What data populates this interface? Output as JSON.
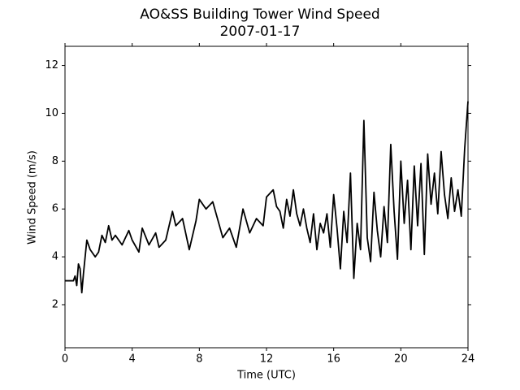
{
  "chart_data": {
    "type": "line",
    "title": "AO&SS Building Tower Wind Speed",
    "subtitle": "2007-01-17",
    "x_label": "Time (UTC)",
    "y_label": "Wind Speed (m/s)",
    "color": "#000000",
    "x": [
      0,
      0.3,
      0.5,
      0.6,
      0.7,
      0.8,
      0.9,
      1.0,
      1.1,
      1.3,
      1.5,
      1.8,
      2.0,
      2.2,
      2.4,
      2.6,
      2.8,
      3.0,
      3.4,
      3.8,
      4.0,
      4.4,
      4.6,
      5.0,
      5.4,
      5.6,
      6.0,
      6.4,
      6.6,
      7.0,
      7.4,
      7.8,
      8.0,
      8.4,
      8.8,
      9.0,
      9.4,
      9.8,
      10.2,
      10.6,
      11.0,
      11.4,
      11.8,
      12.0,
      12.4,
      12.6,
      12.8,
      13.0,
      13.2,
      13.4,
      13.6,
      13.8,
      14.0,
      14.2,
      14.4,
      14.6,
      14.8,
      15.0,
      15.2,
      15.4,
      15.6,
      15.8,
      16.0,
      16.2,
      16.4,
      16.6,
      16.8,
      17.0,
      17.2,
      17.4,
      17.6,
      17.8,
      18.0,
      18.2,
      18.4,
      18.6,
      18.8,
      19.0,
      19.2,
      19.4,
      19.6,
      19.8,
      20.0,
      20.2,
      20.4,
      20.6,
      20.8,
      21.0,
      21.2,
      21.4,
      21.6,
      21.8,
      22.0,
      22.2,
      22.4,
      22.6,
      22.8,
      23.0,
      23.2,
      23.4,
      23.6,
      23.8,
      24.0
    ],
    "values": [
      3.0,
      3.0,
      3.0,
      3.2,
      2.8,
      3.7,
      3.5,
      2.5,
      3.3,
      4.7,
      4.3,
      4.0,
      4.2,
      4.9,
      4.6,
      5.3,
      4.7,
      4.9,
      4.5,
      5.1,
      4.7,
      4.2,
      5.2,
      4.5,
      5.0,
      4.4,
      4.7,
      5.9,
      5.3,
      5.6,
      4.3,
      5.5,
      6.4,
      6.0,
      6.3,
      5.8,
      4.8,
      5.2,
      4.4,
      6.0,
      5.0,
      5.6,
      5.3,
      6.5,
      6.8,
      6.1,
      5.9,
      5.2,
      6.4,
      5.7,
      6.8,
      5.8,
      5.3,
      6.0,
      5.2,
      4.6,
      5.8,
      4.3,
      5.4,
      5.0,
      5.8,
      4.4,
      6.6,
      5.2,
      3.5,
      5.9,
      4.6,
      7.5,
      3.1,
      5.4,
      4.3,
      9.7,
      4.8,
      3.8,
      6.7,
      5.1,
      4.0,
      6.1,
      4.6,
      8.7,
      5.9,
      3.9,
      8.0,
      5.4,
      7.2,
      4.3,
      7.8,
      5.3,
      7.9,
      4.1,
      8.3,
      6.2,
      7.5,
      5.8,
      8.4,
      6.6,
      5.6,
      7.3,
      5.9,
      6.8,
      5.7,
      8.5,
      10.5
    ],
    "xlim": [
      0,
      24
    ],
    "xticks": [
      0,
      4,
      8,
      12,
      16,
      20,
      24
    ],
    "ylim": [
      0.2,
      12.8
    ],
    "yticks": [
      2,
      4,
      6,
      8,
      10,
      12
    ]
  }
}
